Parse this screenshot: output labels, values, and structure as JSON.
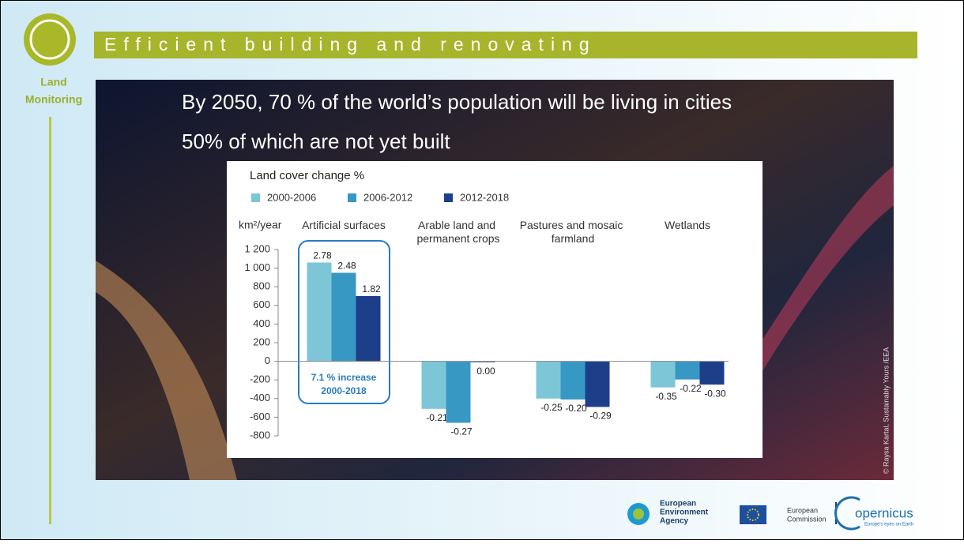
{
  "slide": {
    "header": "Efficient building and renovating",
    "section": [
      "Land",
      "Monitoring"
    ],
    "headline": "By 2050, 70 % of the world’s population will be living in cities",
    "subheadline": "50% of which are not yet built",
    "credit": "© Raysa Kartal, Sustainably Yours /EEA",
    "logos": [
      "European",
      "Environment",
      "Agency",
      "European",
      "Commission",
      "opernicus",
      "Europe's eyes on Earth"
    ]
  },
  "chart_data": {
    "type": "bar",
    "title": "Land cover change %",
    "y_label": "km²/year",
    "categories": [
      "Artificial surfaces",
      "Arable land and permanent crops",
      "Pastures and mosaic farmland",
      "Wetlands"
    ],
    "series": [
      {
        "name": "2000-2006",
        "color": "#7cc6d8",
        "values": [
          1060,
          -510,
          -400,
          -280
        ],
        "percent_labels": [
          "2.78",
          "-0.21",
          "-0.25",
          "-0.35"
        ]
      },
      {
        "name": "2006-2012",
        "color": "#3898c4",
        "values": [
          950,
          -660,
          -410,
          -195
        ],
        "percent_labels": [
          "2.48",
          "-0.27",
          "-0.20",
          "-0.22"
        ]
      },
      {
        "name": "2012-2018",
        "color": "#1d3f8a",
        "values": [
          700,
          -10,
          -490,
          -250
        ],
        "percent_labels": [
          "1.82",
          "0.00",
          "-0.29",
          "-0.30"
        ]
      }
    ],
    "ylim": [
      -800,
      1200
    ],
    "yticks": [
      -800,
      -600,
      -400,
      -200,
      0,
      200,
      400,
      600,
      800,
      {
        "value": 1000,
        "label": "1 000"
      },
      {
        "value": 1200,
        "label": "1 200"
      }
    ],
    "annotation": [
      "7.1 % increase",
      "2000-2018"
    ]
  }
}
